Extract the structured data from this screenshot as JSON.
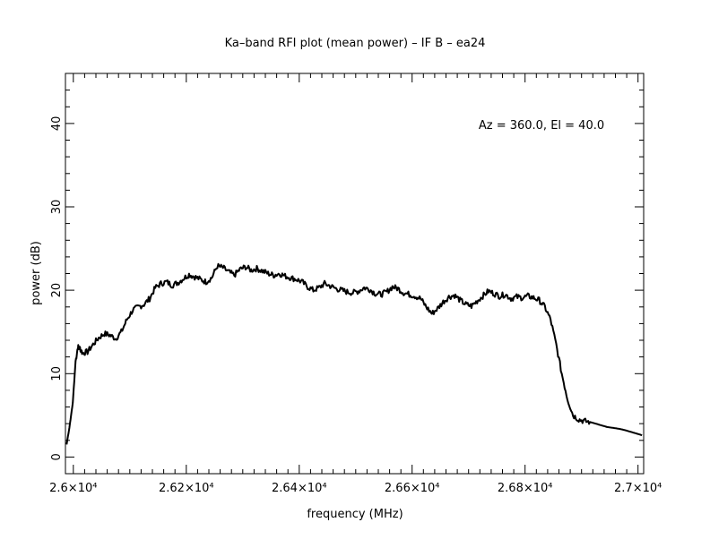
{
  "chart_data": {
    "type": "line",
    "title": "Ka–band RFI plot (mean power) – IF B – ea24",
    "annotation": "Az = 360.0, El = 40.0",
    "xlabel": "frequency (MHz)",
    "ylabel": "power (dB)",
    "xlim": [
      25986,
      27010
    ],
    "ylim": [
      -2,
      46
    ],
    "x_ticks": [
      {
        "value": 26000,
        "label": "2.6×10⁴"
      },
      {
        "value": 26200,
        "label": "2.62×10⁴"
      },
      {
        "value": 26400,
        "label": "2.64×10⁴"
      },
      {
        "value": 26600,
        "label": "2.66×10⁴"
      },
      {
        "value": 26800,
        "label": "2.68×10⁴"
      },
      {
        "value": 27000,
        "label": "2.7×10⁴"
      }
    ],
    "y_ticks": [
      {
        "value": 0,
        "label": "0"
      },
      {
        "value": 10,
        "label": "10"
      },
      {
        "value": 20,
        "label": "20"
      },
      {
        "value": 30,
        "label": "30"
      },
      {
        "value": 40,
        "label": "40"
      }
    ],
    "grid": false,
    "series": [
      {
        "color": "#000000",
        "x": [
          25988,
          25993,
          25999,
          26004,
          26008,
          26012,
          26016,
          26025,
          26035,
          26045,
          26055,
          26065,
          26075,
          26085,
          26095,
          26105,
          26115,
          26125,
          26135,
          26145,
          26155,
          26165,
          26175,
          26185,
          26195,
          26205,
          26215,
          26225,
          26235,
          26245,
          26255,
          26265,
          26275,
          26285,
          26295,
          26305,
          26315,
          26325,
          26335,
          26345,
          26355,
          26365,
          26375,
          26385,
          26395,
          26405,
          26415,
          26425,
          26435,
          26445,
          26455,
          26465,
          26475,
          26485,
          26495,
          26505,
          26515,
          26525,
          26535,
          26545,
          26555,
          26565,
          26575,
          26585,
          26595,
          26605,
          26615,
          26625,
          26635,
          26645,
          26655,
          26665,
          26675,
          26685,
          26695,
          26705,
          26715,
          26725,
          26735,
          26745,
          26755,
          26765,
          26775,
          26785,
          26795,
          26805,
          26815,
          26825,
          26835,
          26845,
          26855,
          26865,
          26875,
          26885,
          26895,
          26905,
          26915,
          26925,
          26935,
          26945,
          26955,
          26965,
          26972,
          26978,
          26983,
          26988,
          26993,
          26998,
          27003,
          27007
        ],
        "y": [
          1.5,
          3.5,
          6.5,
          11.5,
          13.2,
          13.0,
          12.5,
          12.6,
          13.5,
          14.3,
          14.8,
          14.6,
          14.2,
          15.0,
          16.5,
          17.6,
          18.0,
          18.3,
          19.0,
          20.3,
          20.8,
          21.0,
          20.6,
          20.9,
          21.4,
          21.9,
          21.6,
          21.3,
          21.0,
          21.5,
          22.9,
          22.7,
          22.2,
          21.8,
          22.5,
          22.8,
          22.4,
          22.6,
          22.3,
          22.0,
          21.8,
          22.0,
          21.7,
          21.5,
          21.3,
          21.0,
          20.4,
          20.0,
          20.3,
          20.8,
          20.5,
          20.2,
          20.0,
          19.8,
          19.7,
          19.9,
          20.3,
          20.1,
          19.6,
          19.5,
          19.8,
          20.4,
          20.2,
          19.7,
          19.5,
          19.3,
          19.0,
          18.0,
          17.2,
          17.8,
          18.6,
          19.2,
          19.4,
          18.8,
          18.3,
          18.1,
          18.7,
          19.3,
          19.9,
          19.6,
          19.3,
          19.5,
          19.0,
          19.2,
          19.1,
          19.3,
          19.1,
          18.8,
          18.0,
          16.5,
          13.5,
          10.0,
          7.0,
          5.0,
          4.5,
          4.3,
          4.2,
          4.0,
          3.8,
          3.6,
          3.5,
          3.4,
          3.3,
          3.2,
          3.1,
          3.0,
          2.9,
          2.8,
          2.7,
          2.6
        ]
      }
    ]
  }
}
